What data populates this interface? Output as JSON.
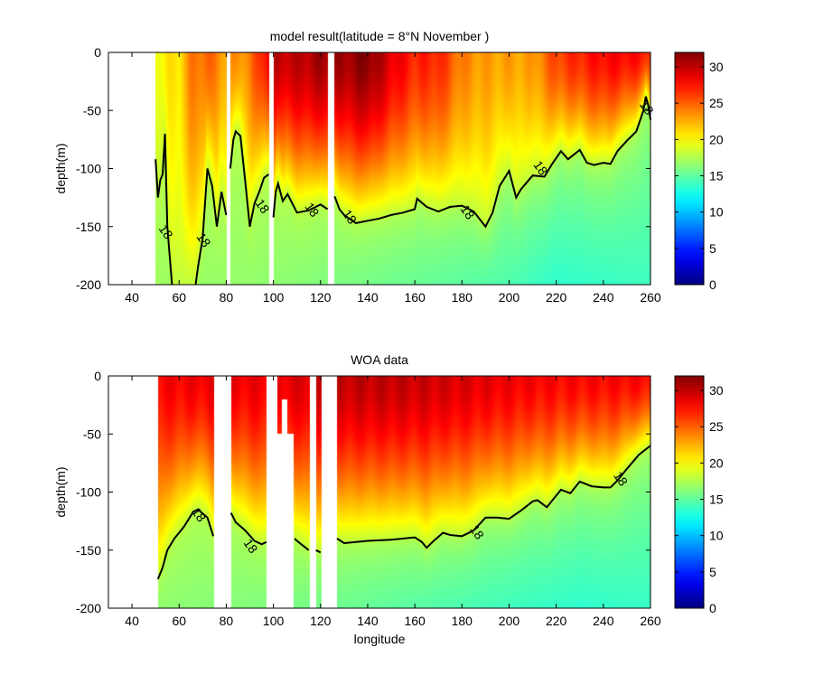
{
  "chart_data": [
    {
      "type": "heatmap",
      "title": "model result(latitude = 8°N  November )",
      "xlabel": "",
      "ylabel": "depth(m)",
      "xlim": [
        30,
        260
      ],
      "ylim": [
        -200,
        0
      ],
      "xticks": [
        "40",
        "60",
        "80",
        "100",
        "120",
        "140",
        "160",
        "180",
        "200",
        "220",
        "240",
        "260"
      ],
      "yticks": [
        "0",
        "-50",
        "-100",
        "-150",
        "-200"
      ],
      "colorbar": {
        "range": [
          0,
          32
        ],
        "ticks": [
          "0",
          "5",
          "10",
          "15",
          "20",
          "25",
          "30"
        ]
      },
      "data_start_lon": 50,
      "gaps": [
        [
          80.2,
          81.6,
          0,
          200
        ],
        [
          98.2,
          100,
          0,
          200
        ],
        [
          123.3,
          126,
          0,
          200
        ]
      ],
      "surface_temp": {
        "lon": [
          50,
          60,
          65,
          72,
          80,
          90,
          100,
          110,
          120,
          130,
          140,
          150,
          160,
          170,
          180,
          190,
          200,
          210,
          220,
          230,
          240,
          250,
          260
        ],
        "value": [
          20,
          21,
          24,
          25,
          23,
          24,
          30,
          30,
          31,
          31,
          32,
          29,
          27,
          27,
          24,
          23,
          23,
          23,
          26,
          27,
          28,
          28,
          27
        ]
      },
      "bottom_temp": {
        "lon": [
          50,
          100,
          150,
          200,
          220,
          260
        ],
        "value": [
          17,
          16.5,
          15.5,
          14.5,
          13.5,
          14
        ]
      },
      "isotherm_18": {
        "label": "18",
        "segments": [
          [
            [
              50,
              -92
            ],
            [
              51,
              -125
            ],
            [
              52,
              -110
            ],
            [
              53,
              -105
            ],
            [
              54,
              -70
            ],
            [
              55,
              -150
            ],
            [
              56,
              -175
            ],
            [
              57,
              -200
            ]
          ],
          [
            [
              67,
              -200
            ],
            [
              68,
              -185
            ],
            [
              70,
              -160
            ],
            [
              72,
              -100
            ],
            [
              74,
              -115
            ],
            [
              76,
              -150
            ],
            [
              78,
              -120
            ],
            [
              80,
              -140
            ]
          ],
          [
            [
              81.7,
              -100
            ],
            [
              83,
              -75
            ],
            [
              84,
              -68
            ],
            [
              86,
              -72
            ],
            [
              88,
              -110
            ],
            [
              90,
              -150
            ],
            [
              92,
              -130
            ],
            [
              94,
              -120
            ],
            [
              96,
              -108
            ],
            [
              98,
              -105
            ]
          ],
          [
            [
              100,
              -142
            ],
            [
              101,
              -120
            ],
            [
              102,
              -113
            ],
            [
              104,
              -128
            ],
            [
              106,
              -122
            ],
            [
              108,
              -130
            ],
            [
              110,
              -138
            ],
            [
              115,
              -136
            ],
            [
              118,
              -133
            ],
            [
              120,
              -131
            ],
            [
              123,
              -135
            ]
          ],
          [
            [
              126,
              -124
            ],
            [
              128,
              -135
            ],
            [
              130,
              -140
            ],
            [
              135,
              -147
            ],
            [
              140,
              -145
            ],
            [
              145,
              -143
            ],
            [
              150,
              -140
            ],
            [
              155,
              -138
            ],
            [
              160,
              -135
            ],
            [
              161,
              -126
            ],
            [
              165,
              -133
            ],
            [
              170,
              -137
            ],
            [
              175,
              -133
            ],
            [
              180,
              -132
            ],
            [
              185,
              -137
            ],
            [
              190,
              -150
            ],
            [
              193,
              -138
            ],
            [
              196,
              -115
            ],
            [
              200,
              -102
            ],
            [
              203,
              -125
            ],
            [
              205,
              -118
            ],
            [
              210,
              -106
            ],
            [
              215,
              -107
            ],
            [
              218,
              -97
            ],
            [
              222,
              -85
            ],
            [
              225,
              -92
            ],
            [
              230,
              -84
            ],
            [
              233,
              -95
            ],
            [
              236,
              -97
            ],
            [
              240,
              -95
            ],
            [
              243,
              -96
            ],
            [
              246,
              -85
            ],
            [
              250,
              -76
            ],
            [
              254,
              -68
            ],
            [
              257,
              -50
            ],
            [
              258,
              -38
            ],
            [
              259,
              -45
            ],
            [
              260,
              -58
            ]
          ]
        ],
        "labels": [
          [
            54,
            -155
          ],
          [
            70,
            -162
          ],
          [
            95,
            -133
          ],
          [
            116,
            -136
          ],
          [
            132,
            -142
          ],
          [
            182,
            -138
          ],
          [
            213,
            -100
          ],
          [
            258,
            -48
          ]
        ]
      }
    },
    {
      "type": "heatmap",
      "title": "WOA data",
      "xlabel": "longitude",
      "ylabel": "depth(m)",
      "xlim": [
        30,
        260
      ],
      "ylim": [
        -200,
        0
      ],
      "xticks": [
        "40",
        "60",
        "80",
        "100",
        "120",
        "140",
        "160",
        "180",
        "200",
        "220",
        "240",
        "260"
      ],
      "yticks": [
        "0",
        "-50",
        "-100",
        "-150",
        "-200"
      ],
      "colorbar": {
        "range": [
          0,
          32
        ],
        "ticks": [
          "0",
          "5",
          "10",
          "15",
          "20",
          "25",
          "30"
        ]
      },
      "data_start_lon": 51,
      "gaps": [
        [
          75,
          82,
          0,
          200
        ],
        [
          97,
          101.5,
          0,
          200
        ],
        [
          101.5,
          108.5,
          50,
          200
        ],
        [
          103.5,
          106,
          20,
          50
        ],
        [
          115.5,
          118,
          0,
          200
        ],
        [
          120.5,
          127,
          0,
          200
        ]
      ],
      "surface_temp": {
        "lon": [
          50,
          70,
          100,
          130,
          150,
          170,
          200,
          220,
          240,
          260
        ],
        "value": [
          28,
          28.5,
          28.5,
          30,
          30,
          29.5,
          28.5,
          28,
          28,
          28
        ]
      },
      "bottom_temp": {
        "lon": [
          50,
          100,
          150,
          200,
          230,
          260
        ],
        "value": [
          16.5,
          16,
          15,
          14,
          13.5,
          13.8
        ]
      },
      "isotherm_18": {
        "label": "18",
        "segments": [
          [
            [
              51,
              -175
            ],
            [
              53,
              -165
            ],
            [
              55,
              -150
            ],
            [
              58,
              -140
            ],
            [
              62,
              -130
            ],
            [
              66,
              -117
            ],
            [
              68,
              -115
            ],
            [
              72,
              -122
            ],
            [
              74.5,
              -138
            ]
          ],
          [
            [
              82,
              -118
            ],
            [
              84,
              -126
            ],
            [
              88,
              -133
            ],
            [
              92,
              -142
            ],
            [
              95,
              -145
            ],
            [
              97,
              -143
            ]
          ],
          [
            [
              109,
              -140
            ],
            [
              110,
              -142
            ],
            [
              115,
              -150
            ]
          ],
          [
            [
              118,
              -150
            ],
            [
              120,
              -152
            ]
          ],
          [
            [
              127,
              -140
            ],
            [
              130,
              -144
            ],
            [
              140,
              -142
            ],
            [
              150,
              -141
            ],
            [
              160,
              -139
            ],
            [
              163,
              -143
            ],
            [
              165,
              -148
            ],
            [
              168,
              -142
            ],
            [
              172,
              -135
            ],
            [
              175,
              -137
            ],
            [
              180,
              -138
            ],
            [
              185,
              -133
            ],
            [
              190,
              -122
            ],
            [
              195,
              -122
            ],
            [
              200,
              -123
            ],
            [
              205,
              -116
            ],
            [
              210,
              -108
            ],
            [
              212,
              -107
            ],
            [
              216,
              -113
            ],
            [
              222,
              -98
            ],
            [
              226,
              -101
            ],
            [
              230,
              -91
            ],
            [
              235,
              -95
            ],
            [
              240,
              -96
            ],
            [
              243,
              -96
            ],
            [
              246,
              -90
            ],
            [
              250,
              -80
            ],
            [
              255,
              -68
            ],
            [
              260,
              -60
            ]
          ]
        ],
        "labels": [
          [
            68,
            -120
          ],
          [
            90,
            -147
          ],
          [
            186,
            -135
          ],
          [
            247,
            -89
          ]
        ]
      }
    }
  ]
}
